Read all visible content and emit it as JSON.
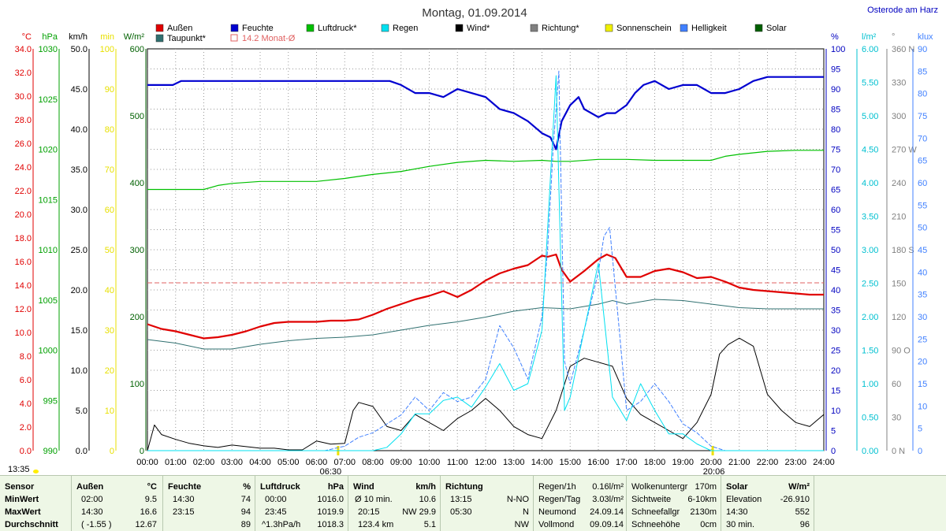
{
  "title": "Montag, 01.09.2014",
  "location": "Osterode am Harz",
  "timestamp": "13:35",
  "legend": [
    {
      "label": "Außen",
      "color": "#e00000"
    },
    {
      "label": "Feuchte",
      "color": "#0000d0"
    },
    {
      "label": "Luftdruck*",
      "color": "#00c000"
    },
    {
      "label": "Regen",
      "color": "#00e0f0"
    },
    {
      "label": "Wind*",
      "color": "#000000"
    },
    {
      "label": "Richtung*",
      "color": "#808080"
    },
    {
      "label": "Sonnenschein",
      "color": "#f0f000"
    },
    {
      "label": "Helligkeit",
      "color": "#4080ff"
    },
    {
      "label": "Solar",
      "color": "#006000"
    },
    {
      "label": "Taupunkt*",
      "color": "#307070"
    },
    {
      "label": "14.2 Monat-Ø",
      "color": "#e06060"
    }
  ],
  "axes": {
    "temp": {
      "unit": "°C",
      "color": "#e00000",
      "ticks": [
        "34.0",
        "32.0",
        "30.0",
        "28.0",
        "26.0",
        "24.0",
        "22.0",
        "20.0",
        "18.0",
        "16.0",
        "14.0",
        "12.0",
        "10.0",
        "8.0",
        "6.0",
        "4.0",
        "2.0",
        "0.0"
      ]
    },
    "pressure": {
      "unit": "hPa",
      "color": "#00a000",
      "ticks": [
        "1030",
        "1025",
        "1020",
        "1015",
        "1010",
        "1005",
        "1000",
        "995",
        "990"
      ]
    },
    "wind": {
      "unit": "km/h",
      "color": "#000000",
      "ticks": [
        "50.0",
        "45.0",
        "40.0",
        "35.0",
        "30.0",
        "25.0",
        "20.0",
        "15.0",
        "10.0",
        "5.0",
        "0.0"
      ]
    },
    "minutes": {
      "unit": "min",
      "color": "#e8e000",
      "ticks": [
        "100",
        "90",
        "80",
        "70",
        "60",
        "50",
        "40",
        "30",
        "20",
        "10",
        "0"
      ]
    },
    "solar": {
      "unit": "W/m²",
      "color": "#006000",
      "ticks": [
        "600",
        "500",
        "400",
        "300",
        "200",
        "100",
        "0"
      ]
    },
    "humidity": {
      "unit": "%",
      "color": "#0000c0",
      "ticks": [
        "100",
        "95",
        "90",
        "85",
        "80",
        "75",
        "70",
        "65",
        "60",
        "55",
        "50",
        "45",
        "40",
        "35",
        "30",
        "25",
        "20",
        "15",
        "10",
        "5",
        "0"
      ]
    },
    "rain": {
      "unit": "l/m²",
      "color": "#00c0d0",
      "ticks": [
        "6.00",
        "5.50",
        "5.00",
        "4.50",
        "4.00",
        "3.50",
        "3.00",
        "2.50",
        "2.00",
        "1.50",
        "1.00",
        "0.50",
        "0.00"
      ]
    },
    "direction": {
      "unit": "°",
      "color": "#808080",
      "ticks": [
        "360 N",
        "330",
        "300",
        "270 W",
        "240",
        "210",
        "180 S",
        "150",
        "120",
        "90 O",
        "60",
        "30",
        "0 N"
      ]
    },
    "lux": {
      "unit": "klux",
      "color": "#4080ff",
      "ticks": [
        "90",
        "85",
        "80",
        "75",
        "70",
        "65",
        "60",
        "55",
        "50",
        "45",
        "40",
        "35",
        "30",
        "25",
        "20",
        "15",
        "10",
        "5",
        "0"
      ]
    },
    "time": {
      "ticks": [
        "00:00",
        "01:00",
        "02:00",
        "03:00",
        "04:00",
        "05:00",
        "06:00",
        "07:00",
        "08:00",
        "09:00",
        "10:00",
        "11:00",
        "12:00",
        "13:00",
        "14:00",
        "15:00",
        "16:00",
        "17:00",
        "18:00",
        "19:00",
        "20:00",
        "21:00",
        "22:00",
        "23:00",
        "24:00"
      ],
      "sunrise": "06:30",
      "sunset": "20:06"
    }
  },
  "chart_data": {
    "type": "line",
    "x_unit": "hours",
    "monthly_average_temp": 14.2,
    "series": [
      {
        "name": "Außen",
        "unit": "°C",
        "color": "#e00000",
        "x": [
          0,
          0.5,
          1,
          1.5,
          2,
          2.5,
          3,
          3.5,
          4,
          4.5,
          5,
          5.5,
          6,
          6.5,
          7,
          7.5,
          8,
          8.5,
          9,
          9.5,
          10,
          10.5,
          11,
          11.5,
          12,
          12.5,
          13,
          13.5,
          14,
          14.2,
          14.5,
          14.7,
          15,
          15.5,
          16,
          16.3,
          16.6,
          17,
          17.5,
          18,
          18.5,
          19,
          19.5,
          20,
          20.5,
          21,
          21.5,
          22,
          22.5,
          23,
          23.5,
          24
        ],
        "y": [
          10.7,
          10.3,
          10.1,
          9.8,
          9.5,
          9.6,
          9.8,
          10.1,
          10.5,
          10.8,
          10.9,
          10.9,
          10.9,
          11.0,
          11.0,
          11.1,
          11.5,
          12.0,
          12.4,
          12.8,
          13.1,
          13.5,
          13.0,
          13.6,
          14.4,
          15.0,
          15.4,
          15.7,
          16.5,
          16.4,
          16.6,
          15.3,
          14.3,
          15.2,
          16.2,
          16.6,
          16.3,
          14.7,
          14.7,
          15.2,
          15.4,
          15.1,
          14.6,
          14.7,
          14.3,
          13.8,
          13.6,
          13.5,
          13.4,
          13.3,
          13.2,
          13.2
        ]
      },
      {
        "name": "Feuchte",
        "unit": "%",
        "color": "#0000d0",
        "x": [
          0,
          0.9,
          1.2,
          1.5,
          2,
          3,
          4,
          5,
          6,
          7,
          8,
          8.3,
          8.6,
          9,
          9.5,
          10,
          10.5,
          11,
          11.5,
          12,
          12.5,
          13,
          13.5,
          14,
          14.3,
          14.5,
          14.7,
          15,
          15.3,
          15.5,
          16,
          16.3,
          16.6,
          17,
          17.3,
          17.6,
          18,
          18.5,
          19,
          19.5,
          20,
          20.5,
          21,
          21.5,
          22,
          22.5,
          23,
          23.5,
          24
        ],
        "y": [
          91,
          91,
          92,
          92,
          92,
          92,
          92,
          92,
          92,
          92,
          92,
          92,
          92,
          91,
          89,
          89,
          88,
          90,
          89,
          88,
          85,
          84,
          82,
          79,
          78,
          75,
          82,
          86,
          88,
          85,
          83,
          84,
          84,
          86,
          89,
          91,
          92,
          90,
          91,
          91,
          89,
          89,
          90,
          92,
          93,
          93,
          93,
          93,
          93
        ]
      },
      {
        "name": "Luftdruck",
        "unit": "hPa",
        "color": "#00c000",
        "x": [
          0,
          1,
          2,
          2.5,
          3,
          4,
          5,
          6,
          7,
          7.5,
          8,
          9,
          10,
          11,
          12,
          13,
          14,
          14.5,
          15,
          16,
          17,
          18,
          19,
          19.5,
          20,
          20.5,
          21,
          22,
          23,
          24
        ],
        "y": [
          1016.0,
          1016.0,
          1016.0,
          1016.4,
          1016.6,
          1016.8,
          1016.8,
          1016.8,
          1017.1,
          1017.3,
          1017.5,
          1017.8,
          1018.3,
          1018.7,
          1018.9,
          1018.8,
          1018.9,
          1018.8,
          1018.8,
          1019.0,
          1019.0,
          1018.9,
          1018.9,
          1018.9,
          1018.9,
          1019.3,
          1019.5,
          1019.8,
          1019.9,
          1019.9
        ]
      },
      {
        "name": "Taupunkt",
        "unit": "°C",
        "color": "#307070",
        "x": [
          0,
          1,
          2,
          3,
          4,
          5,
          6,
          7,
          8,
          9,
          10,
          11,
          12,
          13,
          14,
          15,
          16,
          16.5,
          17,
          18,
          19,
          20,
          21,
          22,
          23,
          24
        ],
        "y": [
          9.4,
          9.1,
          8.6,
          8.6,
          9.0,
          9.3,
          9.5,
          9.6,
          9.8,
          10.2,
          10.6,
          10.9,
          11.3,
          11.8,
          12.1,
          12.0,
          12.4,
          12.7,
          12.4,
          12.8,
          12.7,
          12.4,
          12.1,
          12.0,
          12.0,
          12.0
        ]
      },
      {
        "name": "Wind",
        "unit": "km/h",
        "color": "#000000",
        "x": [
          0,
          0.25,
          0.5,
          1,
          1.5,
          2,
          2.5,
          3,
          3.5,
          4,
          4.5,
          5,
          5.5,
          6,
          6.5,
          7,
          7.3,
          7.5,
          8,
          8.5,
          9,
          9.5,
          10,
          10.5,
          11,
          11.5,
          12,
          12.5,
          13,
          13.5,
          14,
          14.5,
          15,
          15.5,
          16,
          16.5,
          17,
          17.5,
          18,
          18.5,
          19,
          19.5,
          20,
          20.3,
          20.6,
          21,
          21.5,
          22,
          22.5,
          23,
          23.5,
          24
        ],
        "y": [
          0,
          3.2,
          2.0,
          1.4,
          0.9,
          0.6,
          0.4,
          0.7,
          0.5,
          0.3,
          0.3,
          0.1,
          0.1,
          1.2,
          0.8,
          0.9,
          5.0,
          6.0,
          5.5,
          3.0,
          2.5,
          4.5,
          3.5,
          2.5,
          4.0,
          5.0,
          6.5,
          5.0,
          3.0,
          2.0,
          1.5,
          5.0,
          10.5,
          11.5,
          11.0,
          10.5,
          6.5,
          4.5,
          3.5,
          2.5,
          1.5,
          3.5,
          7.0,
          12.0,
          13.2,
          14.0,
          13.0,
          7.0,
          5.0,
          3.5,
          3.0,
          4.5
        ]
      },
      {
        "name": "Helligkeit",
        "unit": "klux",
        "color": "#4080ff",
        "x": [
          0,
          6.3,
          7,
          7.5,
          8,
          8.5,
          9,
          9.5,
          10,
          10.5,
          11,
          11.5,
          12,
          12.5,
          13,
          13.5,
          14,
          14.2,
          14.4,
          14.6,
          14.8,
          15,
          15.5,
          16,
          16.2,
          16.4,
          16.7,
          17,
          17.5,
          18,
          18.5,
          19,
          19.5,
          20,
          20.5,
          21,
          24
        ],
        "y": [
          0,
          0,
          1,
          3,
          4,
          6,
          8,
          12,
          9,
          13,
          11,
          12,
          16,
          28,
          23,
          16,
          30,
          45,
          68,
          85,
          20,
          15,
          27,
          40,
          48,
          50,
          30,
          9,
          11,
          15,
          11,
          6,
          4,
          1,
          0,
          0,
          0
        ]
      },
      {
        "name": "Regen",
        "unit": "l/m²",
        "color": "#00e0f0",
        "x": [
          0,
          8,
          8.5,
          9,
          9.5,
          10,
          10.5,
          11,
          11.5,
          12,
          12.5,
          13,
          13.5,
          14,
          14.5,
          14.8,
          15,
          15.5,
          16,
          16.5,
          17,
          17.5,
          18,
          18.5,
          19,
          19.5,
          20,
          20.5,
          21,
          24
        ],
        "y": [
          0,
          0,
          0.05,
          0.25,
          0.55,
          0.55,
          0.75,
          0.8,
          0.65,
          0.95,
          1.3,
          0.9,
          1.0,
          1.8,
          5.6,
          0.6,
          0.8,
          1.8,
          2.8,
          0.8,
          0.45,
          1.0,
          0.6,
          0.25,
          0.25,
          0.1,
          0,
          0,
          0,
          0
        ]
      }
    ]
  },
  "footer": {
    "sensor": {
      "header": "Sensor",
      "rows": [
        "MinWert",
        "MaxWert",
        "Durchschnitt"
      ]
    },
    "aussen": {
      "header": "Außen",
      "unit": "°C",
      "time": [
        "02:00",
        "14:30",
        "( -1.55 )"
      ],
      "value": [
        "9.5",
        "16.6",
        "12.67"
      ]
    },
    "feuchte": {
      "header": "Feuchte",
      "unit": "%",
      "time": [
        "14:30",
        "23:15",
        ""
      ],
      "value": [
        "74",
        "94",
        "89"
      ]
    },
    "luftdruck": {
      "header": "Luftdruck",
      "unit": "hPa",
      "time": [
        "00:00",
        "23:45",
        "^1.3hPa/h"
      ],
      "value": [
        "1016.0",
        "1019.9",
        "1018.3"
      ]
    },
    "wind": {
      "header": "Wind",
      "unit": "km/h",
      "time": [
        "Ø 10 min.",
        "20:15",
        "123.4 km"
      ],
      "value": [
        "10.6",
        "NW 29.9",
        "5.1"
      ]
    },
    "richtung": {
      "header": "Richtung",
      "time": [
        "13:15",
        "05:30",
        ""
      ],
      "value": [
        "N-NO",
        "N",
        "NW"
      ]
    },
    "regen": {
      "labels": [
        "Regen/1h",
        "Regen/Tag",
        "Neumond",
        "Vollmond"
      ],
      "values": [
        "0.16l/m²",
        "3.03l/m²",
        "24.09.14",
        "09.09.14"
      ]
    },
    "wolken": {
      "labels": [
        "Wolkenuntergr",
        "Sichtweite",
        "Schneefallgr",
        "Schneehöhe"
      ],
      "values": [
        "170m",
        "6-10km",
        "2130m",
        "0cm"
      ]
    },
    "solar": {
      "header": "Solar",
      "unit": "W/m²",
      "time": [
        "Elevation",
        "14:30",
        "30 min."
      ],
      "value": [
        "-26.910",
        "552",
        "96"
      ]
    }
  }
}
